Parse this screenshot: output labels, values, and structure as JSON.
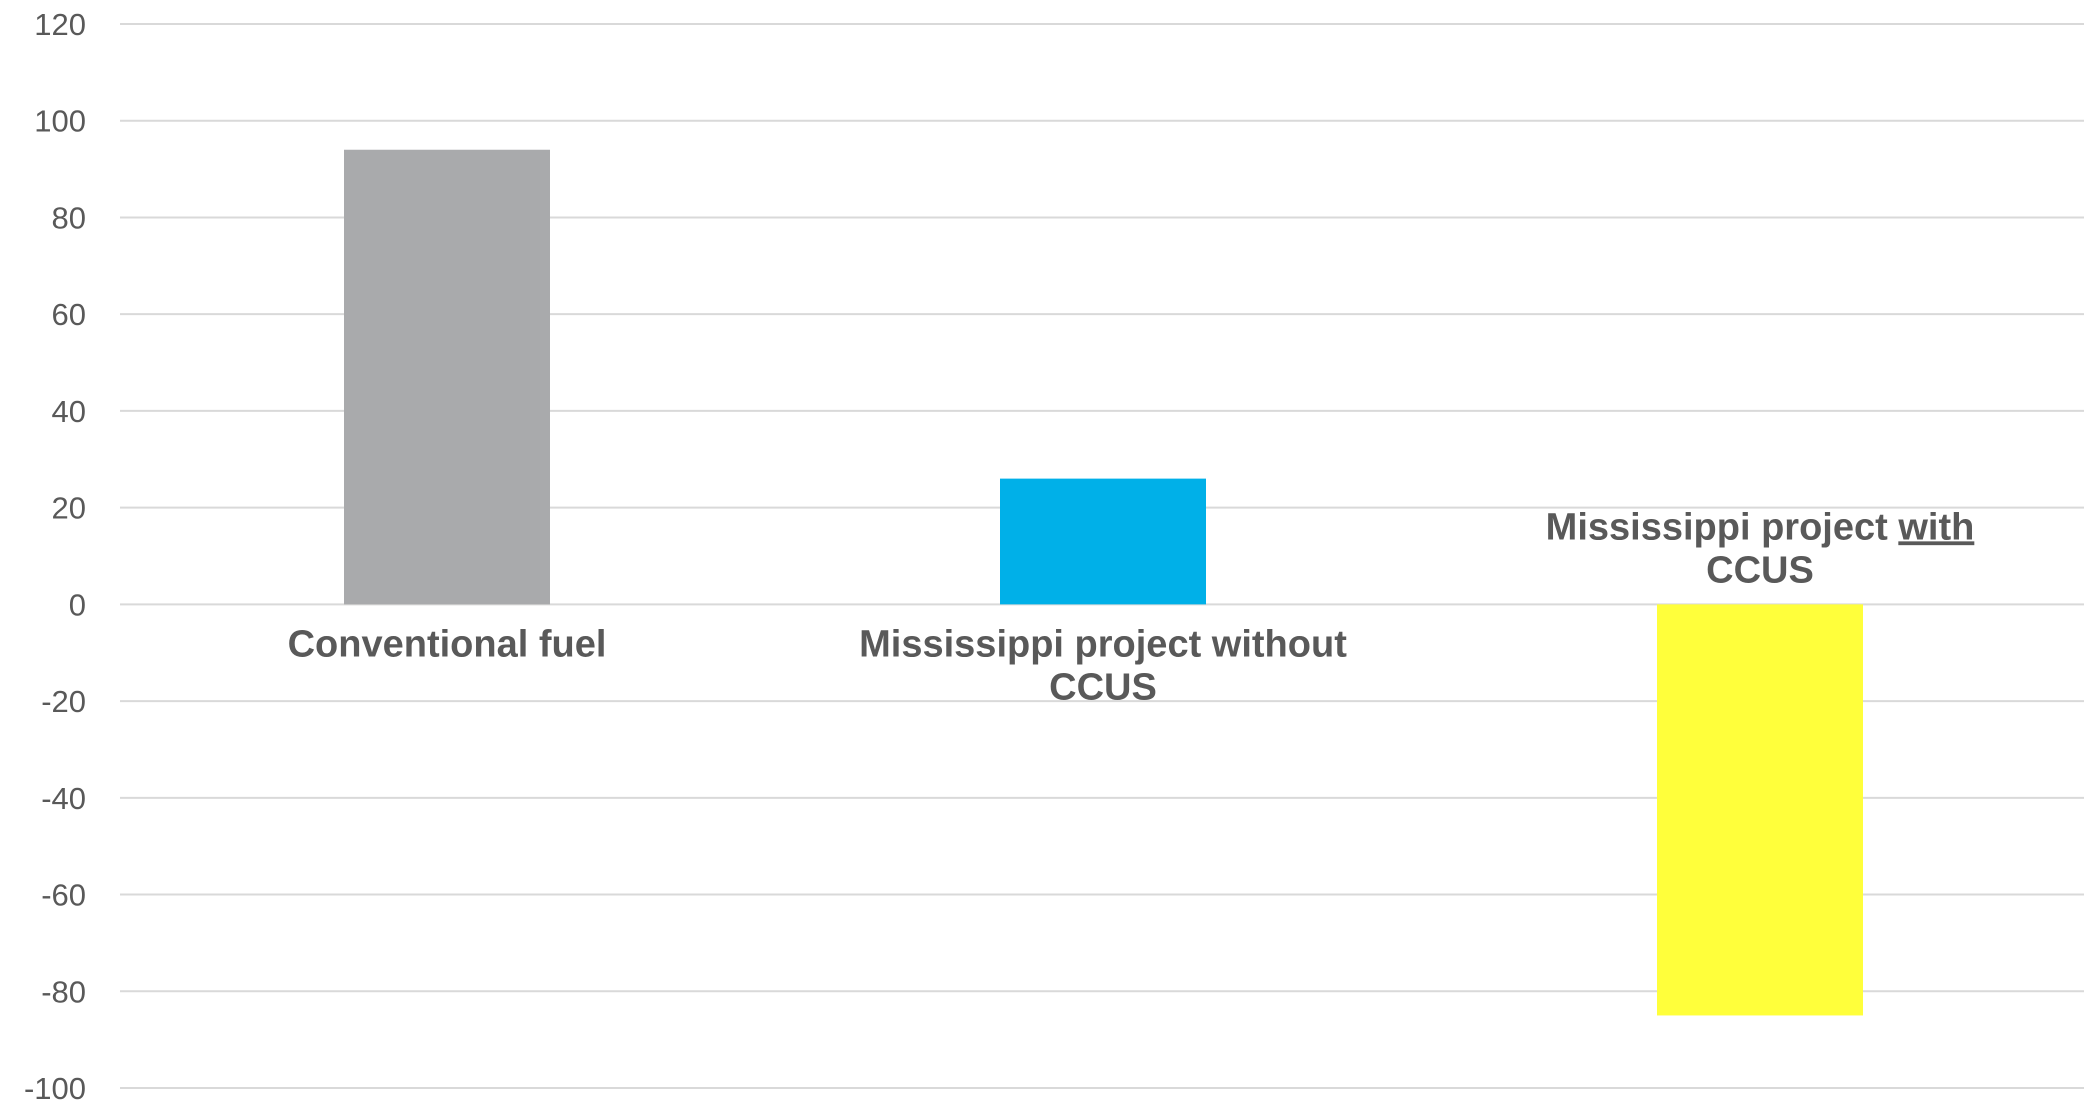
{
  "chart_data": {
    "type": "bar",
    "title": "",
    "xlabel": "",
    "ylabel": "",
    "ylim": [
      -100,
      120
    ],
    "yticks": [
      120,
      100,
      80,
      60,
      40,
      20,
      0,
      -20,
      -40,
      -60,
      -80,
      -100
    ],
    "grid": true,
    "legend": "none",
    "categories": [
      {
        "lines": [
          {
            "text": "Conventional fuel"
          }
        ]
      },
      {
        "lines": [
          {
            "text": "Mississippi project without"
          },
          {
            "text": "CCUS"
          }
        ]
      },
      {
        "lines": [
          {
            "text": "Mississippi project ",
            "emph": "with"
          },
          {
            "text": "CCUS"
          }
        ]
      }
    ],
    "category_names": [
      "Conventional fuel",
      "Mississippi project without CCUS",
      "Mississippi project with CCUS"
    ],
    "values": [
      94,
      26,
      -85
    ],
    "colors": [
      "#a9aaac",
      "#00b0e8",
      "#ffff3b"
    ]
  }
}
